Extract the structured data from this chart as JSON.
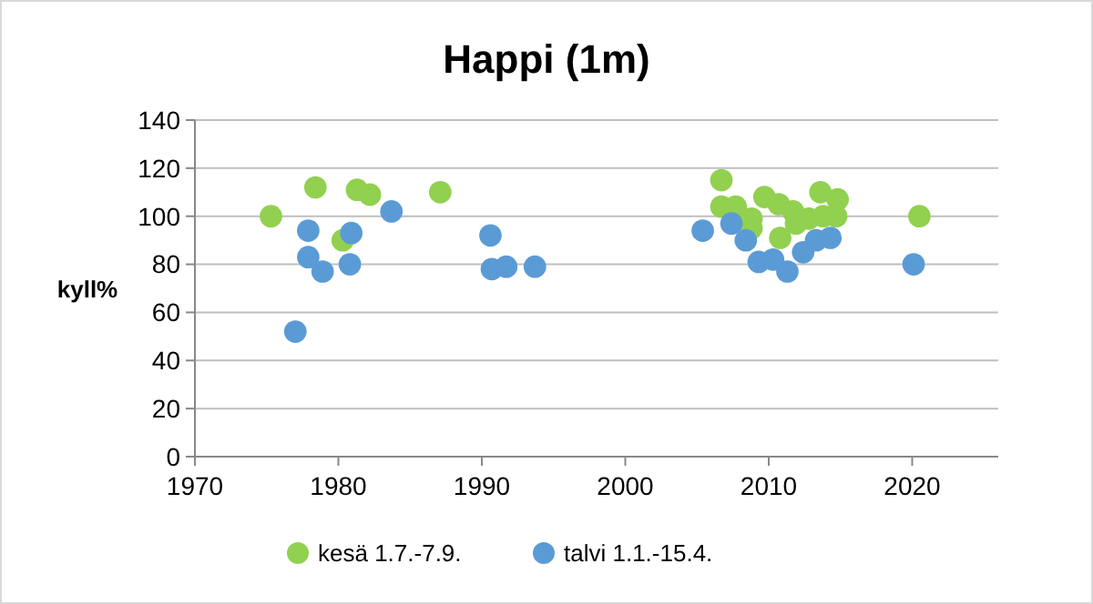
{
  "chart_data": {
    "type": "scatter",
    "title": "Happi (1m)",
    "ylabel": "kyll%",
    "xlim": [
      1970,
      2026
    ],
    "xticks": [
      1970,
      1980,
      1990,
      2000,
      2010,
      2020
    ],
    "ylim": [
      0,
      140
    ],
    "yticks": [
      0,
      20,
      40,
      60,
      80,
      100,
      120,
      140
    ],
    "grid": "y",
    "legend": "bottom",
    "marker": "circle",
    "series": [
      {
        "name": "kesä 1.7.-7.9.",
        "color": "#92d050",
        "x": [
          1975.3,
          1978.4,
          1980.3,
          1981.3,
          1982.2,
          1987.1,
          2006.7,
          2006.7,
          2007.7,
          2008.8,
          2008.8,
          2009.7,
          2010.7,
          2010.8,
          2011.7,
          2011.9,
          2012.8,
          2013.6,
          2014.8,
          2014.7,
          2013.8,
          2020.5
        ],
        "values": [
          100,
          112,
          90,
          111,
          109,
          110,
          115,
          104,
          104,
          99,
          95,
          108,
          105,
          91,
          102,
          97,
          99,
          110,
          107,
          100,
          100,
          100
        ]
      },
      {
        "name": "talvi 1.1.-15.4.",
        "color": "#5b9bd5",
        "x": [
          1977.9,
          1977.9,
          1978.9,
          1977,
          1980.9,
          1980.8,
          1983.7,
          1990.6,
          1990.7,
          1991.7,
          1993.7,
          2005.4,
          2007.4,
          2008.4,
          2009.3,
          2010.3,
          2011.3,
          2012.4,
          2013.3,
          2014.3,
          2020.1
        ],
        "values": [
          94,
          83,
          77,
          52,
          93,
          80,
          102,
          92,
          78,
          79,
          79,
          94,
          97,
          90,
          81,
          82,
          77,
          85,
          90,
          91,
          80
        ]
      }
    ]
  }
}
